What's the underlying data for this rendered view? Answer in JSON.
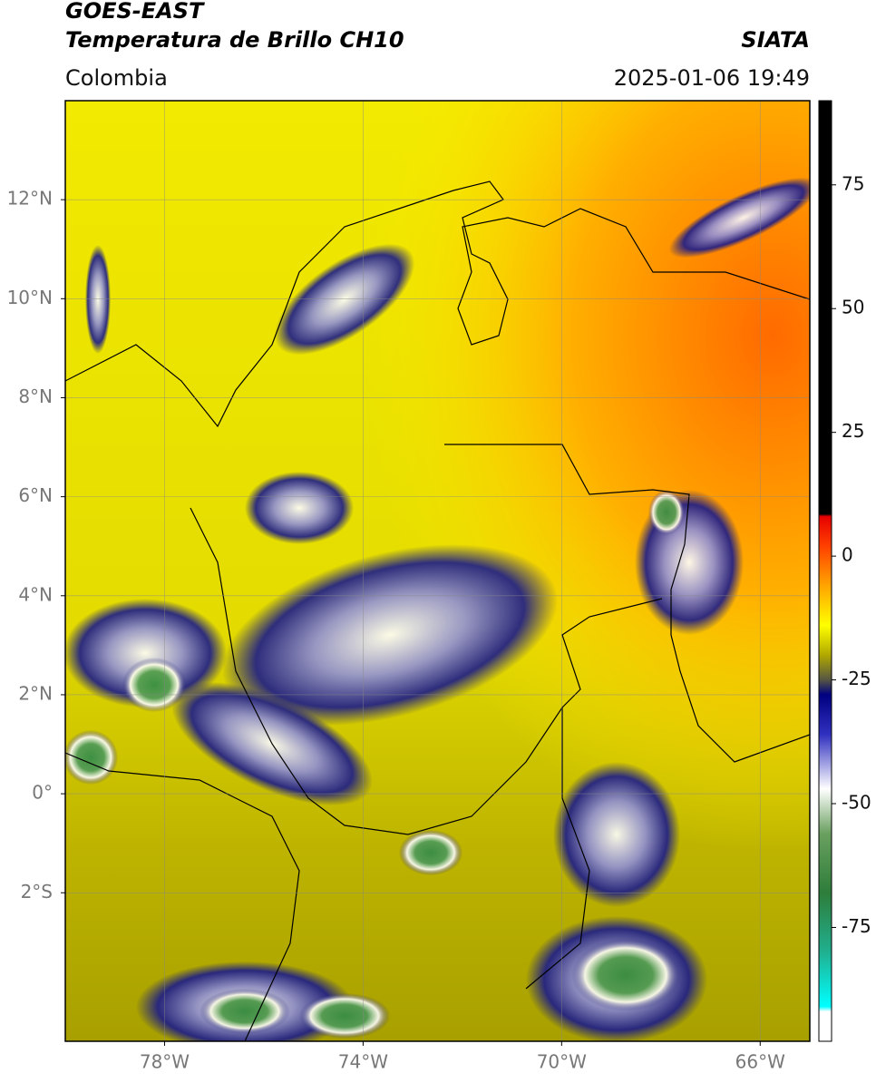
{
  "header": {
    "title_line1": "GOES-EAST",
    "title_line2": "Temperatura de Brillo CH10",
    "source": "SIATA",
    "region": "Colombia",
    "timestamp": "2025-01-06 19:49"
  },
  "map": {
    "lonlim": [
      -80,
      -65
    ],
    "latlim": [
      -5,
      14
    ],
    "latticks": [
      {
        "value": 12,
        "label": "12°N"
      },
      {
        "value": 10,
        "label": "10°N"
      },
      {
        "value": 8,
        "label": "8°N"
      },
      {
        "value": 6,
        "label": "6°N"
      },
      {
        "value": 4,
        "label": "4°N"
      },
      {
        "value": 2,
        "label": "2°N"
      },
      {
        "value": 0,
        "label": "0°"
      },
      {
        "value": -2,
        "label": "2°S"
      }
    ],
    "lonticks": [
      {
        "value": -78,
        "label": "78°W"
      },
      {
        "value": -74,
        "label": "74°W"
      },
      {
        "value": -70,
        "label": "70°W"
      },
      {
        "value": -66,
        "label": "66°W"
      }
    ],
    "grid": true
  },
  "colorbar": {
    "lim": [
      -98,
      92
    ],
    "ticks": [
      75,
      50,
      25,
      0,
      -25,
      -50,
      -75
    ],
    "stops": [
      {
        "value": 92,
        "color": "#000000"
      },
      {
        "value": 8.5,
        "color": "#000000"
      },
      {
        "value": 8,
        "color": "#e60000"
      },
      {
        "value": 2,
        "color": "#ff4000"
      },
      {
        "value": -5,
        "color": "#ff9900"
      },
      {
        "value": -14,
        "color": "#ffff00"
      },
      {
        "value": -20,
        "color": "#b0a800"
      },
      {
        "value": -25,
        "color": "#555544"
      },
      {
        "value": -28,
        "color": "#000080"
      },
      {
        "value": -36,
        "color": "#3030c0"
      },
      {
        "value": -47,
        "color": "#ffffff"
      },
      {
        "value": -56,
        "color": "#6aa060"
      },
      {
        "value": -68,
        "color": "#2e7d3a"
      },
      {
        "value": -80,
        "color": "#20b090"
      },
      {
        "value": -91,
        "color": "#00ffff"
      },
      {
        "value": -92,
        "color": "#ffffff"
      },
      {
        "value": -98,
        "color": "#ffffff"
      }
    ]
  }
}
